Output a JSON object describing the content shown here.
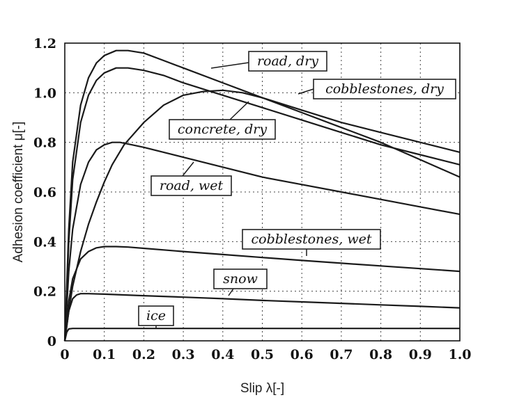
{
  "chart_data": {
    "type": "line",
    "title": "",
    "xlabel": "Slip λ[-]",
    "ylabel": "Adhesion coefficient μ[-]",
    "xlim": [
      0,
      1.0
    ],
    "ylim": [
      0,
      1.2
    ],
    "x_ticks": [
      0,
      0.1,
      0.2,
      0.3,
      0.4,
      0.5,
      0.6,
      0.7,
      0.8,
      0.9,
      1.0
    ],
    "x_tick_labels": [
      "0",
      "0.1",
      "0.2",
      "0.3",
      "0.4",
      "0.5",
      "0.6",
      "0.7",
      "0.8",
      "0.9",
      "1.0"
    ],
    "y_ticks": [
      0,
      0.2,
      0.4,
      0.6,
      0.8,
      1.0,
      1.2
    ],
    "y_tick_labels": [
      "0",
      "0.2",
      "0.4",
      "0.6",
      "0.8",
      "1.0",
      "1.2"
    ],
    "grid": true,
    "series": [
      {
        "name": "road, dry",
        "x": [
          0,
          0.01,
          0.02,
          0.04,
          0.06,
          0.08,
          0.1,
          0.13,
          0.16,
          0.2,
          0.25,
          0.3,
          0.4,
          0.5,
          0.6,
          0.7,
          0.8,
          0.9,
          1.0
        ],
        "y": [
          0,
          0.45,
          0.72,
          0.95,
          1.06,
          1.12,
          1.15,
          1.17,
          1.17,
          1.16,
          1.13,
          1.1,
          1.04,
          0.98,
          0.93,
          0.88,
          0.84,
          0.8,
          0.76
        ]
      },
      {
        "name": "cobblestones, dry",
        "x": [
          0,
          0.01,
          0.02,
          0.04,
          0.06,
          0.08,
          0.1,
          0.13,
          0.16,
          0.2,
          0.25,
          0.3,
          0.4,
          0.5,
          0.6,
          0.7,
          0.8,
          0.9,
          1.0
        ],
        "y": [
          0,
          0.4,
          0.65,
          0.88,
          0.99,
          1.05,
          1.08,
          1.1,
          1.1,
          1.09,
          1.07,
          1.04,
          0.99,
          0.94,
          0.89,
          0.84,
          0.79,
          0.75,
          0.71
        ]
      },
      {
        "name": "concrete, dry",
        "x": [
          0,
          0.01,
          0.02,
          0.04,
          0.06,
          0.08,
          0.1,
          0.12,
          0.15,
          0.2,
          0.25,
          0.3,
          0.35,
          0.4,
          0.45,
          0.5,
          0.6,
          0.7,
          0.8,
          0.9,
          1.0
        ],
        "y": [
          0,
          0.12,
          0.22,
          0.36,
          0.47,
          0.56,
          0.64,
          0.71,
          0.79,
          0.88,
          0.95,
          0.99,
          1.005,
          1.01,
          1.0,
          0.98,
          0.92,
          0.86,
          0.8,
          0.73,
          0.66
        ]
      },
      {
        "name": "road, wet",
        "x": [
          0,
          0.01,
          0.02,
          0.04,
          0.06,
          0.08,
          0.1,
          0.12,
          0.14,
          0.17,
          0.2,
          0.25,
          0.3,
          0.4,
          0.5,
          0.6,
          0.7,
          0.8,
          0.9,
          1.0
        ],
        "y": [
          0,
          0.28,
          0.45,
          0.63,
          0.72,
          0.77,
          0.79,
          0.8,
          0.8,
          0.79,
          0.78,
          0.76,
          0.74,
          0.7,
          0.66,
          0.63,
          0.6,
          0.57,
          0.54,
          0.51
        ]
      },
      {
        "name": "cobblestones, wet",
        "x": [
          0,
          0.01,
          0.02,
          0.04,
          0.06,
          0.08,
          0.1,
          0.13,
          0.16,
          0.2,
          0.3,
          0.4,
          0.5,
          0.6,
          0.7,
          0.8,
          0.9,
          1.0
        ],
        "y": [
          0,
          0.16,
          0.25,
          0.33,
          0.36,
          0.375,
          0.38,
          0.38,
          0.378,
          0.373,
          0.36,
          0.348,
          0.336,
          0.324,
          0.313,
          0.302,
          0.291,
          0.28
        ]
      },
      {
        "name": "snow",
        "x": [
          0,
          0.01,
          0.02,
          0.03,
          0.04,
          0.06,
          0.1,
          0.2,
          0.3,
          0.4,
          0.5,
          0.6,
          0.7,
          0.8,
          0.9,
          1.0
        ],
        "y": [
          0,
          0.12,
          0.17,
          0.185,
          0.19,
          0.19,
          0.188,
          0.182,
          0.176,
          0.17,
          0.163,
          0.157,
          0.151,
          0.145,
          0.139,
          0.133
        ]
      },
      {
        "name": "ice",
        "x": [
          0,
          0.005,
          0.01,
          0.02,
          0.05,
          0.2,
          0.5,
          1.0
        ],
        "y": [
          0,
          0.035,
          0.048,
          0.05,
          0.05,
          0.05,
          0.05,
          0.05
        ]
      }
    ],
    "annotations": [
      {
        "text": "road, dry",
        "series": "road, dry"
      },
      {
        "text": "cobblestones, dry",
        "series": "cobblestones, dry"
      },
      {
        "text": "concrete, dry",
        "series": "concrete, dry"
      },
      {
        "text": "road, wet",
        "series": "road, wet"
      },
      {
        "text": "cobblestones, wet",
        "series": "cobblestones, wet"
      },
      {
        "text": "snow",
        "series": "snow"
      },
      {
        "text": "ice",
        "series": "ice"
      }
    ]
  }
}
